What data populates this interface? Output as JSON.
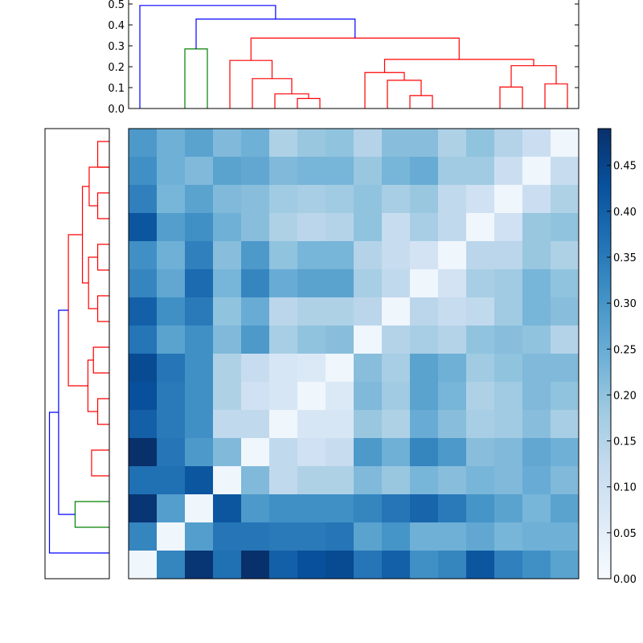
{
  "chart_data": [
    {
      "type": "dendrogram",
      "orientation": "top",
      "yaxis": {
        "ylim": [
          0,
          0.5
        ],
        "ticks": [
          0.0,
          0.1,
          0.2,
          0.3,
          0.4,
          0.5
        ],
        "tick_labels": [
          "0.0",
          "0.1",
          "0.2",
          "0.3",
          "0.4",
          "0.5"
        ]
      },
      "leaf_count": 16,
      "links": [
        {
          "a": 8,
          "b": 9,
          "h": 0.048,
          "color": "#ff0000"
        },
        {
          "a": 7,
          "b": 8.5,
          "h": 0.07,
          "color": "#ff0000"
        },
        {
          "a": 6,
          "b": 7.75,
          "h": 0.143,
          "color": "#ff0000"
        },
        {
          "a": 5,
          "b": 6.875,
          "h": 0.23,
          "color": "#ff0000"
        },
        {
          "a": 13,
          "b": 14,
          "h": 0.062,
          "color": "#ff0000"
        },
        {
          "a": 12,
          "b": 13.5,
          "h": 0.135,
          "color": "#ff0000"
        },
        {
          "a": 11,
          "b": 12.75,
          "h": 0.172,
          "color": "#ff0000"
        },
        {
          "a": 17,
          "b": 18,
          "h": 0.103,
          "color": "#ff0000"
        },
        {
          "a": 19,
          "b": 20,
          "h": 0.118,
          "color": "#ff0000"
        },
        {
          "a": 17.5,
          "b": 19.5,
          "h": 0.205,
          "color": "#ff0000"
        },
        {
          "a": 11.875,
          "b": 18.5,
          "h": 0.235,
          "color": "#ff0000"
        },
        {
          "a": 5.9375,
          "b": 15.1875,
          "h": 0.337,
          "color": "#ff0000"
        },
        {
          "a": 3,
          "b": 4,
          "h": 0.285,
          "color": "#008000"
        },
        {
          "a": 3.5,
          "b": 10.5625,
          "h": 0.428,
          "color": "#0000ff"
        },
        {
          "a": 1,
          "b": 7.03125,
          "h": 0.493,
          "color": "#0000ff"
        }
      ]
    },
    {
      "type": "dendrogram",
      "orientation": "left",
      "leaf_count": 16,
      "links": [
        {
          "a": 3,
          "b": 4,
          "h": 0.19,
          "color": "#ff0000"
        },
        {
          "a": 1,
          "b": 2,
          "h": 0.19,
          "color": "#ff0000"
        },
        {
          "a": 5,
          "b": 6,
          "h": 0.19,
          "color": "#ff0000"
        },
        {
          "a": 7,
          "b": 8,
          "h": 0.19,
          "color": "#ff0000"
        },
        {
          "a": 9,
          "b": 10,
          "h": 0.26,
          "color": "#ff0000"
        },
        {
          "a": 11,
          "b": 12,
          "h": 0.19,
          "color": "#ff0000"
        },
        {
          "a": 13,
          "b": 14,
          "h": 0.29,
          "color": "#ff0000"
        },
        {
          "a": 2,
          "b": 3.5,
          "h": 0.33,
          "color": "#ff0000"
        },
        {
          "a": 5.5,
          "b": 7.5,
          "h": 0.34,
          "color": "#ff0000"
        },
        {
          "a": 9.5,
          "b": 11.5,
          "h": 0.35,
          "color": "#ff0000"
        },
        {
          "a": 2.75,
          "b": 6.5,
          "h": 0.44,
          "color": "#ff0000"
        },
        {
          "a": 4.625,
          "b": 10.5,
          "h": 0.67,
          "color": "#ff0000"
        },
        {
          "a": 15,
          "b": 16,
          "h": 0.56,
          "color": "#008000"
        },
        {
          "a": 7.5625,
          "b": 15.5,
          "h": 0.83,
          "color": "#0000ff"
        },
        {
          "a": 11.53125,
          "b": 17,
          "h": 0.98,
          "color": "#0000ff"
        }
      ]
    },
    {
      "type": "heatmap",
      "rows": 16,
      "cols": 16,
      "vmin": 0.0,
      "vmax": 0.49,
      "colormap": "Blues",
      "values": [
        [
          0.29,
          0.24,
          0.27,
          0.22,
          0.24,
          0.16,
          0.19,
          0.2,
          0.15,
          0.21,
          0.21,
          0.16,
          0.2,
          0.15,
          0.11,
          0.02
        ],
        [
          0.31,
          0.24,
          0.22,
          0.27,
          0.26,
          0.22,
          0.23,
          0.23,
          0.19,
          0.23,
          0.25,
          0.18,
          0.18,
          0.11,
          0.02,
          0.12
        ],
        [
          0.34,
          0.23,
          0.27,
          0.22,
          0.21,
          0.18,
          0.17,
          0.18,
          0.2,
          0.17,
          0.19,
          0.13,
          0.1,
          0.02,
          0.11,
          0.16
        ],
        [
          0.42,
          0.28,
          0.31,
          0.24,
          0.21,
          0.16,
          0.14,
          0.15,
          0.2,
          0.12,
          0.17,
          0.13,
          0.02,
          0.1,
          0.19,
          0.2
        ],
        [
          0.31,
          0.24,
          0.34,
          0.21,
          0.29,
          0.2,
          0.23,
          0.23,
          0.15,
          0.12,
          0.09,
          0.02,
          0.14,
          0.14,
          0.19,
          0.16
        ],
        [
          0.33,
          0.26,
          0.38,
          0.23,
          0.33,
          0.25,
          0.27,
          0.27,
          0.17,
          0.13,
          0.02,
          0.09,
          0.17,
          0.18,
          0.23,
          0.2
        ],
        [
          0.4,
          0.31,
          0.35,
          0.2,
          0.25,
          0.14,
          0.16,
          0.16,
          0.14,
          0.02,
          0.14,
          0.12,
          0.13,
          0.18,
          0.23,
          0.21
        ],
        [
          0.36,
          0.27,
          0.31,
          0.22,
          0.29,
          0.17,
          0.2,
          0.21,
          0.02,
          0.15,
          0.17,
          0.15,
          0.2,
          0.21,
          0.2,
          0.15
        ],
        [
          0.44,
          0.36,
          0.31,
          0.16,
          0.12,
          0.08,
          0.07,
          0.02,
          0.21,
          0.17,
          0.27,
          0.24,
          0.18,
          0.2,
          0.22,
          0.22
        ],
        [
          0.43,
          0.35,
          0.31,
          0.16,
          0.1,
          0.08,
          0.02,
          0.07,
          0.22,
          0.18,
          0.27,
          0.23,
          0.16,
          0.18,
          0.22,
          0.2
        ],
        [
          0.4,
          0.35,
          0.31,
          0.13,
          0.13,
          0.02,
          0.08,
          0.08,
          0.19,
          0.16,
          0.25,
          0.21,
          0.17,
          0.18,
          0.21,
          0.17
        ],
        [
          0.49,
          0.36,
          0.29,
          0.22,
          0.02,
          0.13,
          0.1,
          0.12,
          0.29,
          0.24,
          0.33,
          0.29,
          0.21,
          0.22,
          0.26,
          0.24
        ],
        [
          0.37,
          0.37,
          0.42,
          0.02,
          0.22,
          0.13,
          0.16,
          0.16,
          0.22,
          0.19,
          0.23,
          0.21,
          0.23,
          0.22,
          0.25,
          0.22
        ],
        [
          0.48,
          0.28,
          0.02,
          0.42,
          0.29,
          0.31,
          0.31,
          0.31,
          0.33,
          0.36,
          0.39,
          0.35,
          0.3,
          0.27,
          0.23,
          0.27
        ],
        [
          0.33,
          0.02,
          0.28,
          0.36,
          0.36,
          0.35,
          0.35,
          0.36,
          0.27,
          0.3,
          0.24,
          0.24,
          0.26,
          0.23,
          0.24,
          0.24
        ],
        [
          0.02,
          0.33,
          0.48,
          0.37,
          0.49,
          0.4,
          0.43,
          0.44,
          0.36,
          0.4,
          0.31,
          0.33,
          0.42,
          0.34,
          0.31,
          0.27
        ]
      ]
    },
    {
      "type": "colorbar",
      "vmin": 0.0,
      "vmax": 0.49,
      "ticks": [
        0.0,
        0.05,
        0.1,
        0.15,
        0.2,
        0.25,
        0.3,
        0.35,
        0.4,
        0.45
      ],
      "tick_labels": [
        "0.00",
        "0.05",
        "0.10",
        "0.15",
        "0.20",
        "0.25",
        "0.30",
        "0.35",
        "0.40",
        "0.45"
      ]
    }
  ]
}
